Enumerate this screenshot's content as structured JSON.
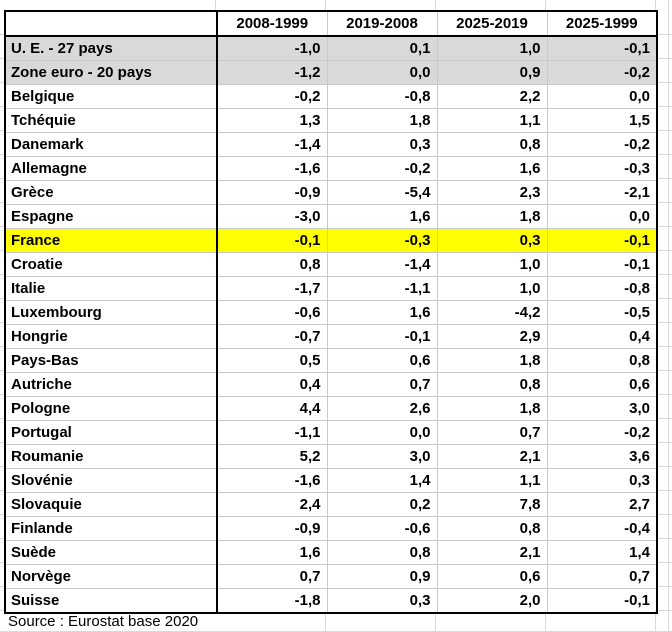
{
  "table": {
    "corner_label": "",
    "columns": [
      "2008-1999",
      "2019-2008",
      "2025-2019",
      "2025-1999"
    ],
    "rows": [
      {
        "name": "U. E. - 27 pays",
        "values": [
          "-1,0",
          "0,1",
          "1,0",
          "-0,1"
        ],
        "style": "aggregate"
      },
      {
        "name": "Zone euro - 20 pays",
        "values": [
          "-1,2",
          "0,0",
          "0,9",
          "-0,2"
        ],
        "style": "aggregate"
      },
      {
        "name": "Belgique",
        "values": [
          "-0,2",
          "-0,8",
          "2,2",
          "0,0"
        ],
        "style": "normal"
      },
      {
        "name": "Tchéquie",
        "values": [
          "1,3",
          "1,8",
          "1,1",
          "1,5"
        ],
        "style": "normal"
      },
      {
        "name": "Danemark",
        "values": [
          "-1,4",
          "0,3",
          "0,8",
          "-0,2"
        ],
        "style": "normal"
      },
      {
        "name": "Allemagne",
        "values": [
          "-1,6",
          "-0,2",
          "1,6",
          "-0,3"
        ],
        "style": "normal"
      },
      {
        "name": "Grèce",
        "values": [
          "-0,9",
          "-5,4",
          "2,3",
          "-2,1"
        ],
        "style": "normal"
      },
      {
        "name": "Espagne",
        "values": [
          "-3,0",
          "1,6",
          "1,8",
          "0,0"
        ],
        "style": "normal"
      },
      {
        "name": "France",
        "values": [
          "-0,1",
          "-0,3",
          "0,3",
          "-0,1"
        ],
        "style": "highlight"
      },
      {
        "name": "Croatie",
        "values": [
          "0,8",
          "-1,4",
          "1,0",
          "-0,1"
        ],
        "style": "normal"
      },
      {
        "name": "Italie",
        "values": [
          "-1,7",
          "-1,1",
          "1,0",
          "-0,8"
        ],
        "style": "normal"
      },
      {
        "name": "Luxembourg",
        "values": [
          "-0,6",
          "1,6",
          "-4,2",
          "-0,5"
        ],
        "style": "normal"
      },
      {
        "name": "Hongrie",
        "values": [
          "-0,7",
          "-0,1",
          "2,9",
          "0,4"
        ],
        "style": "normal"
      },
      {
        "name": "Pays-Bas",
        "values": [
          "0,5",
          "0,6",
          "1,8",
          "0,8"
        ],
        "style": "normal"
      },
      {
        "name": "Autriche",
        "values": [
          "0,4",
          "0,7",
          "0,8",
          "0,6"
        ],
        "style": "normal"
      },
      {
        "name": "Pologne",
        "values": [
          "4,4",
          "2,6",
          "1,8",
          "3,0"
        ],
        "style": "normal"
      },
      {
        "name": "Portugal",
        "values": [
          "-1,1",
          "0,0",
          "0,7",
          "-0,2"
        ],
        "style": "normal"
      },
      {
        "name": "Roumanie",
        "values": [
          "5,2",
          "3,0",
          "2,1",
          "3,6"
        ],
        "style": "normal"
      },
      {
        "name": "Slovénie",
        "values": [
          "-1,6",
          "1,4",
          "1,1",
          "0,3"
        ],
        "style": "normal"
      },
      {
        "name": "Slovaquie",
        "values": [
          "2,4",
          "0,2",
          "7,8",
          "2,7"
        ],
        "style": "normal"
      },
      {
        "name": "Finlande",
        "values": [
          "-0,9",
          "-0,6",
          "0,8",
          "-0,4"
        ],
        "style": "normal"
      },
      {
        "name": "Suède",
        "values": [
          "1,6",
          "0,8",
          "2,1",
          "1,4"
        ],
        "style": "normal"
      },
      {
        "name": "Norvège",
        "values": [
          "0,7",
          "0,9",
          "0,6",
          "0,7"
        ],
        "style": "normal"
      },
      {
        "name": "Suisse",
        "values": [
          "-1,8",
          "0,3",
          "2,0",
          "-0,1"
        ],
        "style": "normal"
      }
    ]
  },
  "source_note": "Source : Eurostat base 2020",
  "colors": {
    "aggregate_row_bg": "#D9D9D9",
    "highlight_row_bg": "#FFFF00",
    "highlight_row_text": "#FF0000",
    "table_border": "#000000",
    "table_grid_line": "#C9C9C9",
    "sheet_grid_line": "#D9D9D9"
  }
}
